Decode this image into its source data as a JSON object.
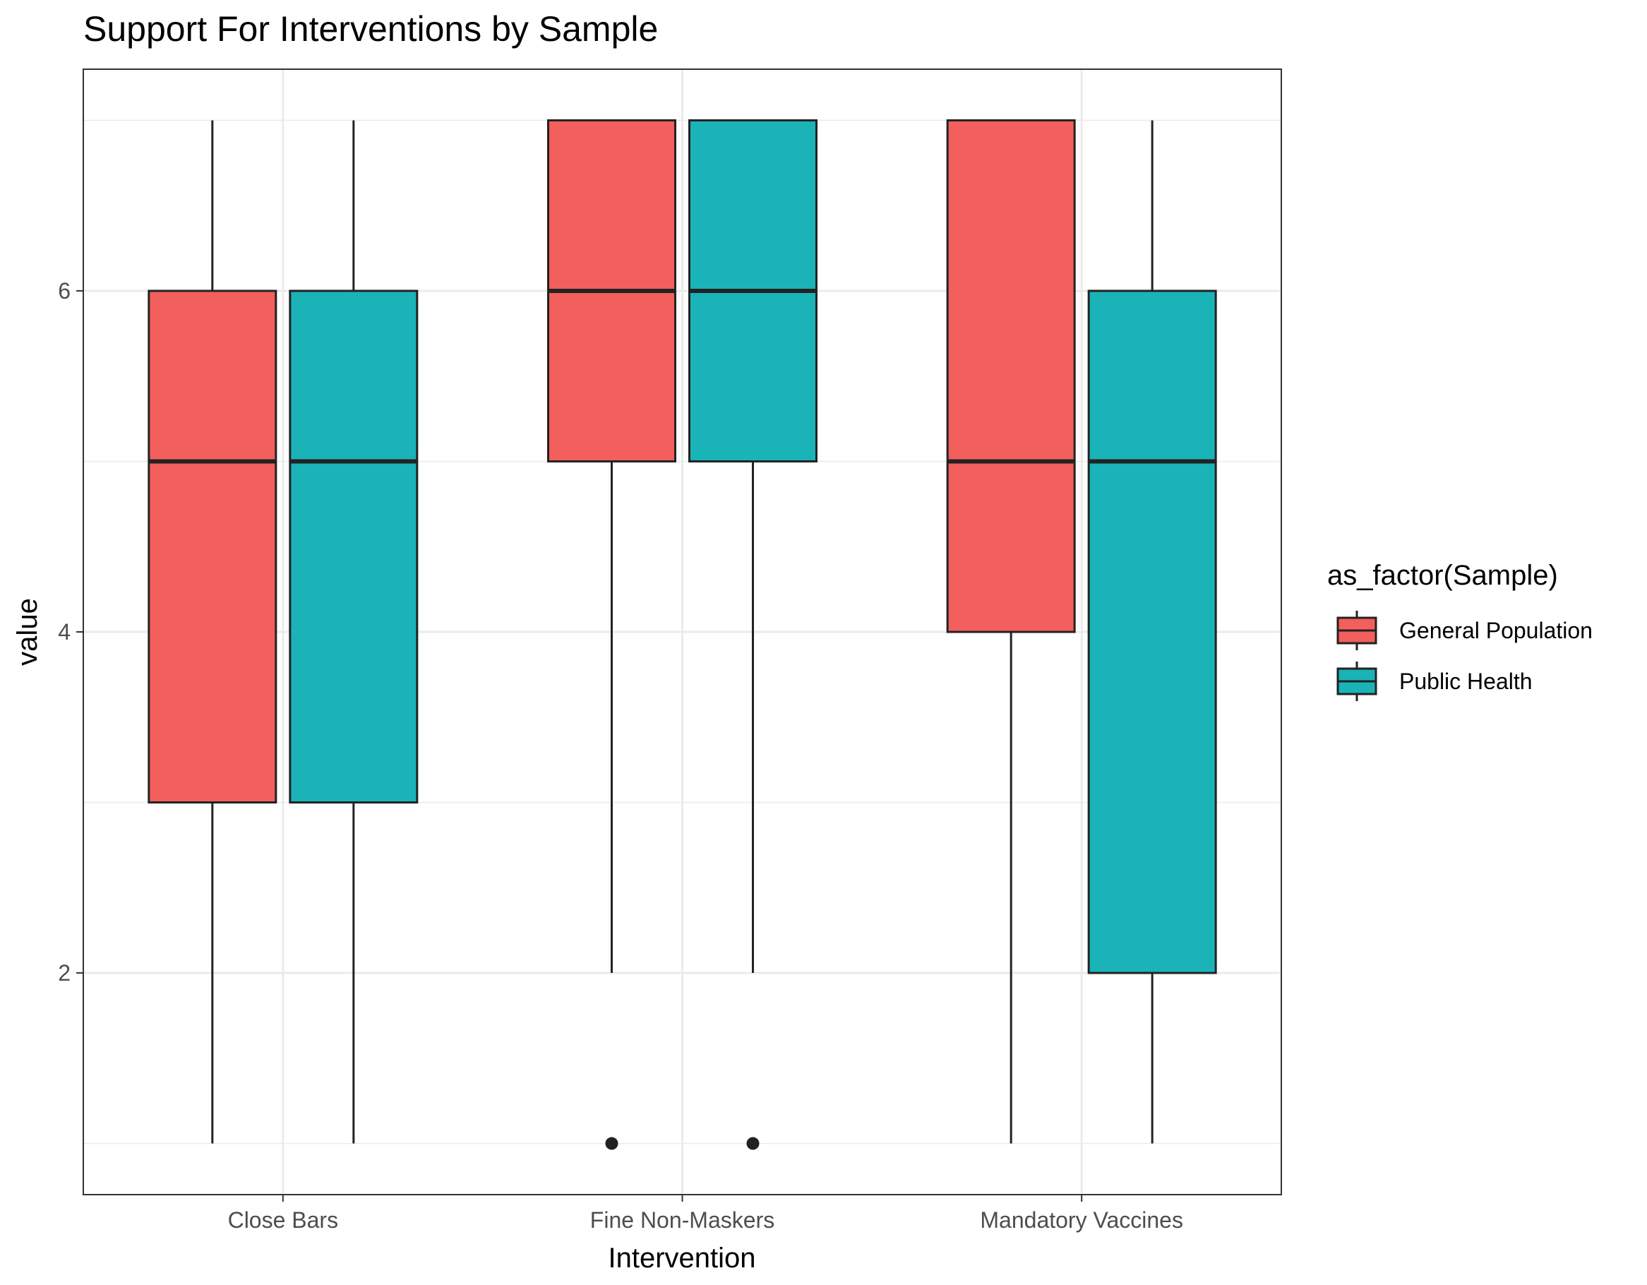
{
  "chart_data": {
    "type": "boxplot",
    "title": "Support For Interventions by Sample",
    "xlabel": "Intervention",
    "ylabel": "value",
    "categories": [
      "Close Bars",
      "Fine Non-Maskers",
      "Mandatory Vaccines"
    ],
    "y_ticks": [
      2,
      4,
      6
    ],
    "ylim": [
      0.7,
      7.3
    ],
    "grid": true,
    "legend": {
      "title": "as_factor(Sample)",
      "position": "right"
    },
    "series": [
      {
        "name": "General Population",
        "color": "#F25F5C",
        "boxes": [
          {
            "min": 1,
            "q1": 3,
            "median": 5,
            "q3": 6,
            "max": 7,
            "outliers": []
          },
          {
            "min": 2,
            "q1": 5,
            "median": 6,
            "q3": 7,
            "max": 7,
            "outliers": [
              1
            ]
          },
          {
            "min": 1,
            "q1": 4,
            "median": 5,
            "q3": 7,
            "max": 7,
            "outliers": []
          }
        ]
      },
      {
        "name": "Public Health",
        "color": "#1AB3B7",
        "boxes": [
          {
            "min": 1,
            "q1": 3,
            "median": 5,
            "q3": 6,
            "max": 7,
            "outliers": []
          },
          {
            "min": 2,
            "q1": 5,
            "median": 6,
            "q3": 7,
            "max": 7,
            "outliers": [
              1
            ]
          },
          {
            "min": 1,
            "q1": 2,
            "median": 5,
            "q3": 6,
            "max": 7,
            "outliers": []
          }
        ]
      }
    ]
  }
}
